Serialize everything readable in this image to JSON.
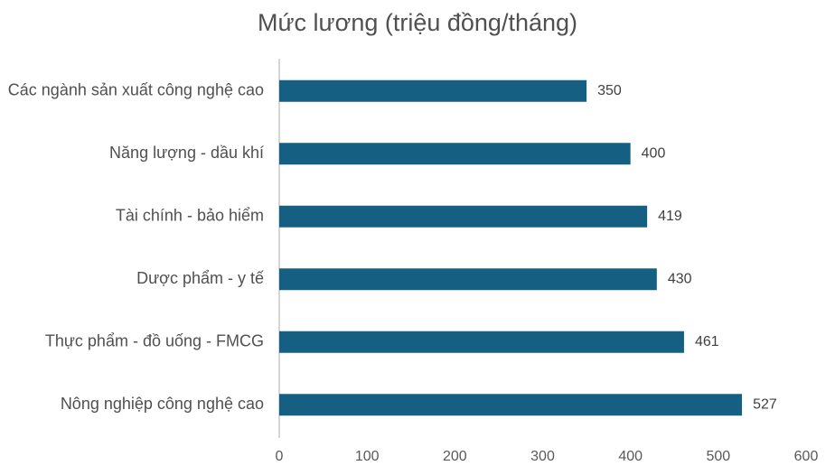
{
  "chart_data": {
    "type": "bar",
    "orientation": "horizontal",
    "title": "Mức lương (triệu đồng/tháng)",
    "categories": [
      "Các ngành sản xuất công nghệ cao",
      "Năng lượng - dầu khí",
      "Tài chính - bảo hiểm",
      "Dược phẩm - y tế",
      "Thực phẩm - đồ uống - FMCG",
      "Nông nghiệp công nghệ cao"
    ],
    "values": [
      350,
      400,
      419,
      430,
      461,
      527
    ],
    "color": "#155f82",
    "xlim": [
      0,
      600
    ],
    "xticks": [
      0,
      100,
      200,
      300,
      400,
      500,
      600
    ],
    "grid": false
  }
}
